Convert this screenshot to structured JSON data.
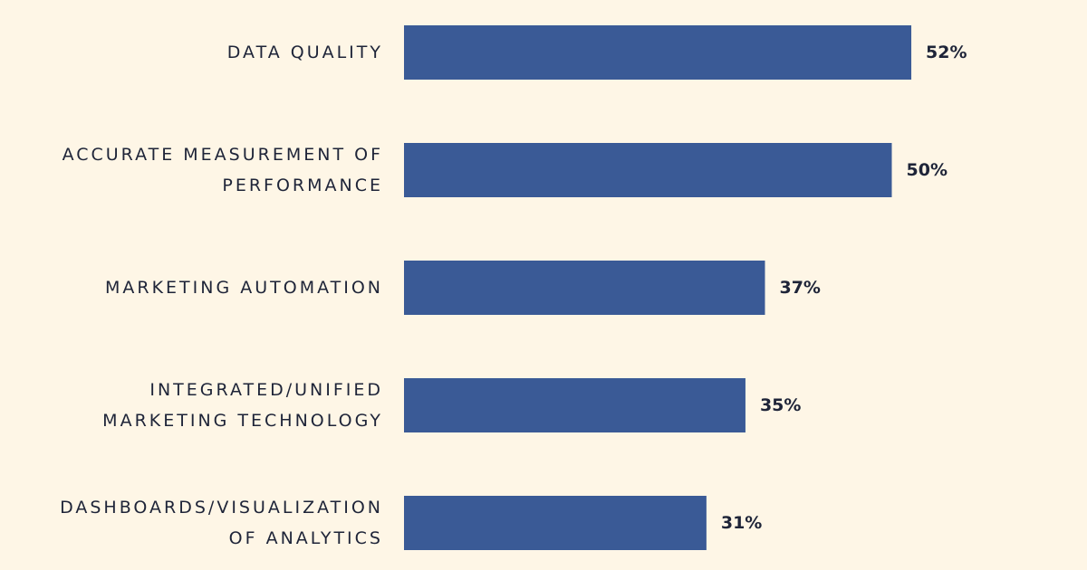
{
  "colors": {
    "background": "#fef6e6",
    "bar": "#3a5a96",
    "text": "#1e2438"
  },
  "chart_data": {
    "type": "bar",
    "orientation": "horizontal",
    "categories": [
      "DATA QUALITY",
      "ACCURATE MEASUREMENT OF PERFORMANCE",
      "MARKETING AUTOMATION",
      "INTEGRATED/UNIFIED MARKETING TECHNOLOGY",
      "DASHBOARDS/VISUALIZATION OF ANALYTICS"
    ],
    "category_lines": [
      [
        "DATA QUALITY"
      ],
      [
        "ACCURATE MEASUREMENT OF",
        "PERFORMANCE"
      ],
      [
        "MARKETING AUTOMATION"
      ],
      [
        "INTEGRATED/UNIFIED",
        "MARKETING TECHNOLOGY"
      ],
      [
        "DASHBOARDS/VISUALIZATION",
        "OF ANALYTICS"
      ]
    ],
    "values": [
      52,
      50,
      37,
      35,
      31
    ],
    "value_labels": [
      "52%",
      "50%",
      "37%",
      "35%",
      "31%"
    ],
    "unit": "%",
    "xlim": [
      0,
      100
    ],
    "grid": false,
    "legend": "none"
  }
}
